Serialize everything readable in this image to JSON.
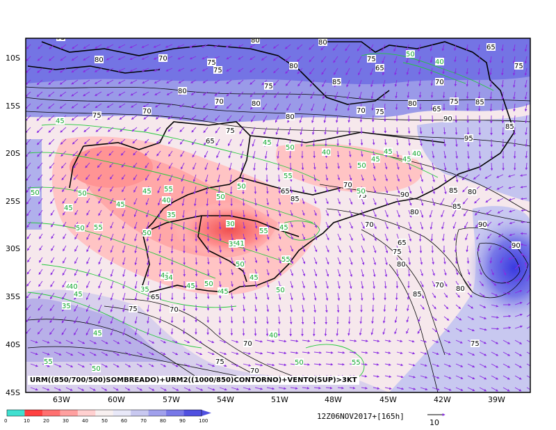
{
  "lat_ticks": [
    "10S",
    "15S",
    "20S",
    "25S",
    "30S",
    "35S",
    "40S",
    "45S"
  ],
  "lon_ticks": [
    "63W",
    "60W",
    "57W",
    "54W",
    "51W",
    "48W",
    "45W",
    "42W",
    "39W"
  ],
  "caption": "URM((850/700/500)SOMBREADO)+URM2((1000/850)CONTORNO)+VENTO(SUP)>3KT",
  "time_label": "12Z06NOV2017+[165h]",
  "ref_vector_label": "10",
  "colorbar_labels": [
    "0",
    "10",
    "20",
    "30",
    "40",
    "50",
    "60",
    "70",
    "80",
    "90",
    "100"
  ],
  "colorbar_colors": [
    "#40e0d0",
    "#ff4040",
    "#ff7070",
    "#ffa0a0",
    "#ffd0d0",
    "#f8f0f0",
    "#e8e8f8",
    "#c8c8f0",
    "#a0a0ec",
    "#7878e8",
    "#5050e0"
  ],
  "contour_labels_black": [
    {
      "t": "75"
    },
    {
      "t": "80"
    },
    {
      "t": "70"
    },
    {
      "t": "75"
    },
    {
      "t": "80"
    },
    {
      "t": "75"
    },
    {
      "t": "75"
    },
    {
      "t": "80"
    },
    {
      "t": "80"
    },
    {
      "t": "75"
    },
    {
      "t": "85"
    },
    {
      "t": "80"
    },
    {
      "t": "70"
    },
    {
      "t": "65"
    },
    {
      "t": "75"
    },
    {
      "t": "70"
    },
    {
      "t": "80"
    },
    {
      "t": "70"
    },
    {
      "t": "75"
    },
    {
      "t": "80"
    },
    {
      "t": "65"
    },
    {
      "t": "90"
    },
    {
      "t": "75"
    },
    {
      "t": "85"
    },
    {
      "t": "95"
    },
    {
      "t": "65"
    },
    {
      "t": "85"
    },
    {
      "t": "70"
    },
    {
      "t": "75"
    },
    {
      "t": "65"
    },
    {
      "t": "80"
    },
    {
      "t": "75"
    },
    {
      "t": "85"
    },
    {
      "t": "70"
    },
    {
      "t": "90"
    },
    {
      "t": "85"
    },
    {
      "t": "80"
    },
    {
      "t": "85"
    },
    {
      "t": "65"
    },
    {
      "t": "75"
    },
    {
      "t": "80"
    },
    {
      "t": "90"
    },
    {
      "t": "70"
    },
    {
      "t": "65"
    },
    {
      "t": "75"
    },
    {
      "t": "80"
    },
    {
      "t": "90"
    },
    {
      "t": "85"
    },
    {
      "t": "70"
    },
    {
      "t": "80"
    },
    {
      "t": "75"
    },
    {
      "t": "65"
    },
    {
      "t": "70"
    },
    {
      "t": "75"
    },
    {
      "t": "70"
    },
    {
      "t": "75"
    },
    {
      "t": "70"
    }
  ],
  "contour_labels_green": [
    {
      "t": "45"
    },
    {
      "t": "50"
    },
    {
      "t": "45"
    },
    {
      "t": "50"
    },
    {
      "t": "45"
    },
    {
      "t": "50"
    },
    {
      "t": "55"
    },
    {
      "t": "50"
    },
    {
      "t": "40"
    },
    {
      "t": "45"
    },
    {
      "t": "50"
    },
    {
      "t": "55"
    },
    {
      "t": "50"
    },
    {
      "t": "50"
    },
    {
      "t": "40"
    },
    {
      "t": "35"
    },
    {
      "t": "30"
    },
    {
      "t": "35"
    },
    {
      "t": "45"
    },
    {
      "t": "55"
    },
    {
      "t": "45"
    },
    {
      "t": "55"
    },
    {
      "t": "50"
    },
    {
      "t": "40"
    },
    {
      "t": "35"
    },
    {
      "t": "45"
    },
    {
      "t": "45"
    },
    {
      "t": "34"
    },
    {
      "t": "45"
    },
    {
      "t": "50"
    },
    {
      "t": "45"
    },
    {
      "t": "35"
    },
    {
      "t": "50"
    },
    {
      "t": "45"
    },
    {
      "t": "40"
    },
    {
      "t": "45"
    },
    {
      "t": "55"
    },
    {
      "t": "50"
    },
    {
      "t": "50"
    },
    {
      "t": "40"
    },
    {
      "t": "55"
    },
    {
      "t": "45"
    },
    {
      "t": "50"
    },
    {
      "t": "45"
    },
    {
      "t": "40"
    },
    {
      "t": "50"
    },
    {
      "t": "50"
    },
    {
      "t": "40"
    },
    {
      "t": "55"
    },
    {
      "t": "45"
    },
    {
      "t": "45"
    },
    {
      "t": "41"
    }
  ]
}
